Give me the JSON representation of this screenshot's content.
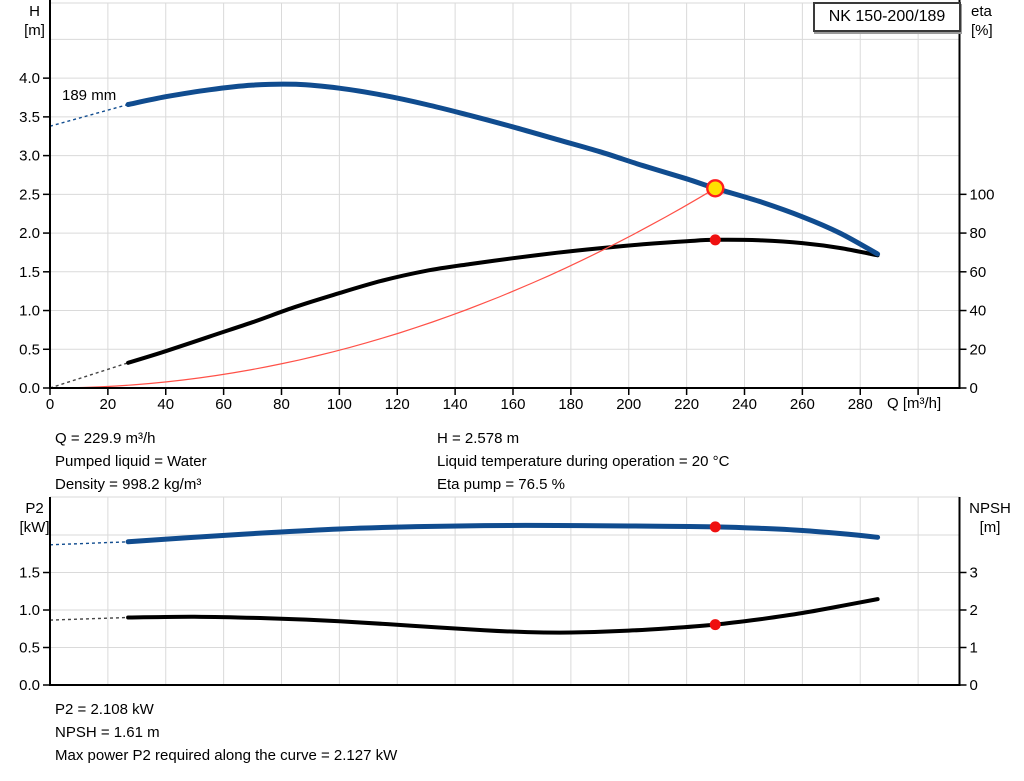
{
  "pump": {
    "model": "NK 150-200/189"
  },
  "colors": {
    "blue": "#104C8F",
    "black": "#000000",
    "red_line": "#FF5148",
    "marker_red": "#EF1010",
    "marker_yellow": "#FFE000",
    "marker_ring": "#FF1F1F",
    "grid": "#DADADA",
    "axis": "#000000",
    "dash_gray": "#444444"
  },
  "info_panel": {
    "left": [
      "Q = 229.9 m³/h",
      "Pumped liquid = Water",
      "Density = 998.2 kg/m³"
    ],
    "right": [
      "H = 2.578 m",
      "Liquid temperature during operation = 20 °C",
      "Eta pump = 76.5 %"
    ]
  },
  "footer_panel": {
    "lines": [
      "P2 = 2.108 kW",
      "NPSH = 1.61 m",
      "Max power P2 required along the curve = 2.127 kW"
    ]
  },
  "chart_data": [
    {
      "id": "qh-eta-chart",
      "type": "line",
      "x_axis": {
        "label": "Q [m³/h]",
        "min": 0,
        "max": 314.3,
        "show_ticks": true,
        "ticks": [
          {
            "v": 0,
            "t": "0"
          },
          {
            "v": 20,
            "t": "20"
          },
          {
            "v": 40,
            "t": "40"
          },
          {
            "v": 60,
            "t": "60"
          },
          {
            "v": 80,
            "t": "80"
          },
          {
            "v": 100,
            "t": "100"
          },
          {
            "v": 120,
            "t": "120"
          },
          {
            "v": 140,
            "t": "140"
          },
          {
            "v": 160,
            "t": "160"
          },
          {
            "v": 180,
            "t": "180"
          },
          {
            "v": 200,
            "t": "200"
          },
          {
            "v": 220,
            "t": "220"
          },
          {
            "v": 240,
            "t": "240"
          },
          {
            "v": 260,
            "t": "260"
          },
          {
            "v": 280,
            "t": "280"
          },
          {
            "v": 300,
            "t": ""
          }
        ]
      },
      "left_axis": {
        "label": "H",
        "unit": "[m]",
        "min": 0,
        "max": 4.97,
        "ticks": [
          {
            "v": 0,
            "t": "0.0"
          },
          {
            "v": 0.5,
            "t": "0.5"
          },
          {
            "v": 1,
            "t": "1.0"
          },
          {
            "v": 1.5,
            "t": "1.5"
          },
          {
            "v": 2,
            "t": "2.0"
          },
          {
            "v": 2.5,
            "t": "2.5"
          },
          {
            "v": 3,
            "t": "3.0"
          },
          {
            "v": 3.5,
            "t": "3.5"
          },
          {
            "v": 4,
            "t": "4.0"
          },
          {
            "v": 4.5,
            "t": ""
          }
        ]
      },
      "right_axis": {
        "label": "eta",
        "unit": "[%]",
        "min": 0,
        "max": 198.8,
        "ticks": [
          {
            "v": 0,
            "t": "0"
          },
          {
            "v": 20,
            "t": "20"
          },
          {
            "v": 40,
            "t": "40"
          },
          {
            "v": 60,
            "t": "60"
          },
          {
            "v": 80,
            "t": "80"
          },
          {
            "v": 100,
            "t": "100"
          }
        ]
      },
      "series": [
        {
          "name": "eta-curve",
          "axis": "right",
          "color_key": "black",
          "dash_color_key": "dash_gray",
          "width": 4,
          "dash": {
            "x": [
              0,
              27
            ],
            "y": [
              0,
              13
            ]
          },
          "solid": {
            "x": [
              27,
              40,
              55,
              70,
              85,
              100,
              115,
              130,
              145,
              160,
              175,
              190,
              205,
              220,
              229.9,
              245,
              260,
              273,
              286
            ],
            "y": [
              13,
              19,
              26.5,
              34,
              42,
              49,
              55.5,
              60.5,
              64,
              67,
              69.8,
              72.2,
              74.2,
              75.8,
              76.5,
              76.3,
              74.8,
              72.3,
              68.5
            ]
          }
        },
        {
          "name": "system-curve",
          "axis": "left",
          "color_key": "red_line",
          "width": 1.2,
          "kind": "quad",
          "x_end": 229.9,
          "y_end": 2.578
        },
        {
          "name": "head-curve",
          "axis": "left",
          "color_key": "blue",
          "width": 5,
          "label": "189 mm",
          "dash": {
            "x": [
              0,
              27
            ],
            "y": [
              3.38,
              3.66
            ]
          },
          "solid": {
            "x": [
              27,
              40,
              55,
              70,
              85,
              100,
              115,
              130,
              145,
              160,
              175,
              190,
              205,
              220,
              229.9,
              245,
              260,
              273,
              286
            ],
            "y": [
              3.66,
              3.76,
              3.85,
              3.91,
              3.92,
              3.87,
              3.78,
              3.66,
              3.52,
              3.37,
              3.21,
              3.05,
              2.87,
              2.7,
              2.578,
              2.41,
              2.21,
              2.0,
              1.73
            ]
          }
        }
      ],
      "markers": [
        {
          "name": "duty-point",
          "axis": "left",
          "x": 229.9,
          "y": 2.578,
          "shape": "circle",
          "r": 8,
          "fill_key": "marker_yellow",
          "stroke_key": "marker_ring",
          "stroke_width": 2.4
        },
        {
          "name": "eta-operating-point",
          "axis": "right",
          "x": 229.9,
          "y": 76.5,
          "shape": "dot",
          "r": 5.5,
          "fill_key": "marker_red"
        }
      ]
    },
    {
      "id": "p2-npsh-chart",
      "type": "line",
      "x_axis": {
        "label": "",
        "min": 0,
        "max": 314.3,
        "show_ticks": false,
        "ticks": [
          {
            "v": 0,
            "t": ""
          },
          {
            "v": 20,
            "t": ""
          },
          {
            "v": 40,
            "t": ""
          },
          {
            "v": 60,
            "t": ""
          },
          {
            "v": 80,
            "t": ""
          },
          {
            "v": 100,
            "t": ""
          },
          {
            "v": 120,
            "t": ""
          },
          {
            "v": 140,
            "t": ""
          },
          {
            "v": 160,
            "t": ""
          },
          {
            "v": 180,
            "t": ""
          },
          {
            "v": 200,
            "t": ""
          },
          {
            "v": 220,
            "t": ""
          },
          {
            "v": 240,
            "t": ""
          },
          {
            "v": 260,
            "t": ""
          },
          {
            "v": 280,
            "t": ""
          },
          {
            "v": 300,
            "t": ""
          }
        ]
      },
      "left_axis": {
        "label": "P2",
        "unit": "[kW]",
        "min": 0,
        "max": 2.507,
        "ticks": [
          {
            "v": 0,
            "t": "0.0"
          },
          {
            "v": 0.5,
            "t": "0.5"
          },
          {
            "v": 1,
            "t": "1.0"
          },
          {
            "v": 1.5,
            "t": "1.5"
          },
          {
            "v": 2,
            "t": ""
          },
          {
            "v": 2.5,
            "t": ""
          }
        ]
      },
      "right_axis": {
        "label": "NPSH",
        "unit": "[m]",
        "min": 0,
        "max": 5.013,
        "ticks": [
          {
            "v": 0,
            "t": "0"
          },
          {
            "v": 1,
            "t": "1"
          },
          {
            "v": 2,
            "t": "2"
          },
          {
            "v": 3,
            "t": "3"
          },
          {
            "v": 4,
            "t": ""
          }
        ]
      },
      "series": [
        {
          "name": "npsh-curve",
          "axis": "right",
          "color_key": "black",
          "dash_color_key": "dash_gray",
          "width": 4,
          "dash": {
            "x": [
              0,
              27
            ],
            "y": [
              1.73,
              1.8
            ]
          },
          "solid": {
            "x": [
              27,
              50,
              75,
              100,
              125,
              150,
              165,
              180,
              200,
              215,
              229.9,
              245,
              260,
              273,
              286
            ],
            "y": [
              1.8,
              1.82,
              1.78,
              1.7,
              1.58,
              1.46,
              1.41,
              1.4,
              1.45,
              1.52,
              1.61,
              1.75,
              1.92,
              2.1,
              2.29
            ]
          }
        },
        {
          "name": "p2-curve",
          "axis": "left",
          "color_key": "blue",
          "width": 5,
          "dash": {
            "x": [
              0,
              27
            ],
            "y": [
              1.87,
              1.91
            ]
          },
          "solid": {
            "x": [
              27,
              50,
              75,
              100,
              125,
              150,
              175,
              200,
              215,
              229.9,
              245,
              260,
              273,
              286
            ],
            "y": [
              1.91,
              1.97,
              2.03,
              2.08,
              2.11,
              2.125,
              2.127,
              2.12,
              2.115,
              2.108,
              2.09,
              2.06,
              2.02,
              1.97
            ]
          }
        }
      ],
      "markers": [
        {
          "name": "p2-operating-point",
          "axis": "left",
          "x": 229.9,
          "y": 2.108,
          "shape": "dot",
          "r": 5.5,
          "fill_key": "marker_red"
        },
        {
          "name": "npsh-operating-point",
          "axis": "right",
          "x": 229.9,
          "y": 1.61,
          "shape": "dot",
          "r": 5.5,
          "fill_key": "marker_red"
        }
      ]
    }
  ]
}
